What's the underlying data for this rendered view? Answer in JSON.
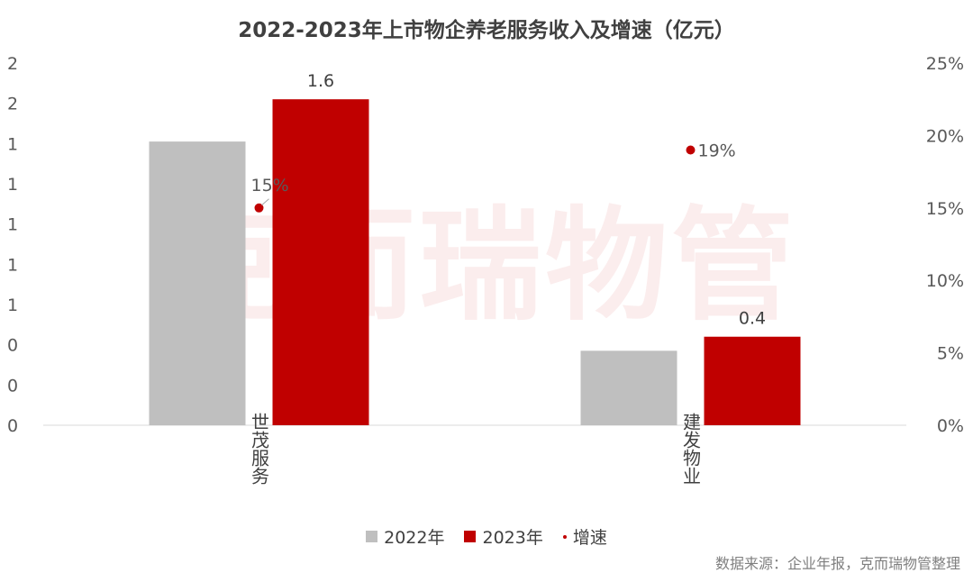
{
  "chart_data": {
    "type": "bar",
    "title": "2022-2023年上市物企养老服务收入及增速（亿元）",
    "categories": [
      "世茂服务",
      "建发物业"
    ],
    "series": [
      {
        "name": "2022年",
        "type": "bar",
        "axis": "left",
        "color": "#bfbfbf",
        "values": [
          1.41,
          0.37
        ]
      },
      {
        "name": "2023年",
        "type": "bar",
        "axis": "left",
        "color": "#c00000",
        "values": [
          1.62,
          0.44
        ],
        "labels": [
          "1.6",
          "0.4"
        ]
      },
      {
        "name": "增速",
        "type": "scatter",
        "axis": "right",
        "color": "#c00000",
        "values": [
          15,
          19
        ],
        "labels": [
          "15%",
          "19%"
        ]
      }
    ],
    "y_left": {
      "min": 0,
      "max": 1.8,
      "ticks": [
        0,
        0.2,
        0.4,
        0.6,
        0.8,
        1.0,
        1.2,
        1.4,
        1.6,
        1.8
      ],
      "tick_labels": [
        "0",
        "0",
        "0",
        "1",
        "1",
        "1",
        "1",
        "1",
        "2",
        "2"
      ]
    },
    "y_right": {
      "min": 0,
      "max": 25,
      "ticks": [
        0,
        5,
        10,
        15,
        20,
        25
      ],
      "tick_labels": [
        "0%",
        "5%",
        "10%",
        "15%",
        "20%",
        "25%"
      ]
    },
    "grid": false,
    "legend": "bottom-center"
  },
  "watermark": "克而瑞物管",
  "source_note": "数据来源：企业年报，克而瑞物管整理"
}
